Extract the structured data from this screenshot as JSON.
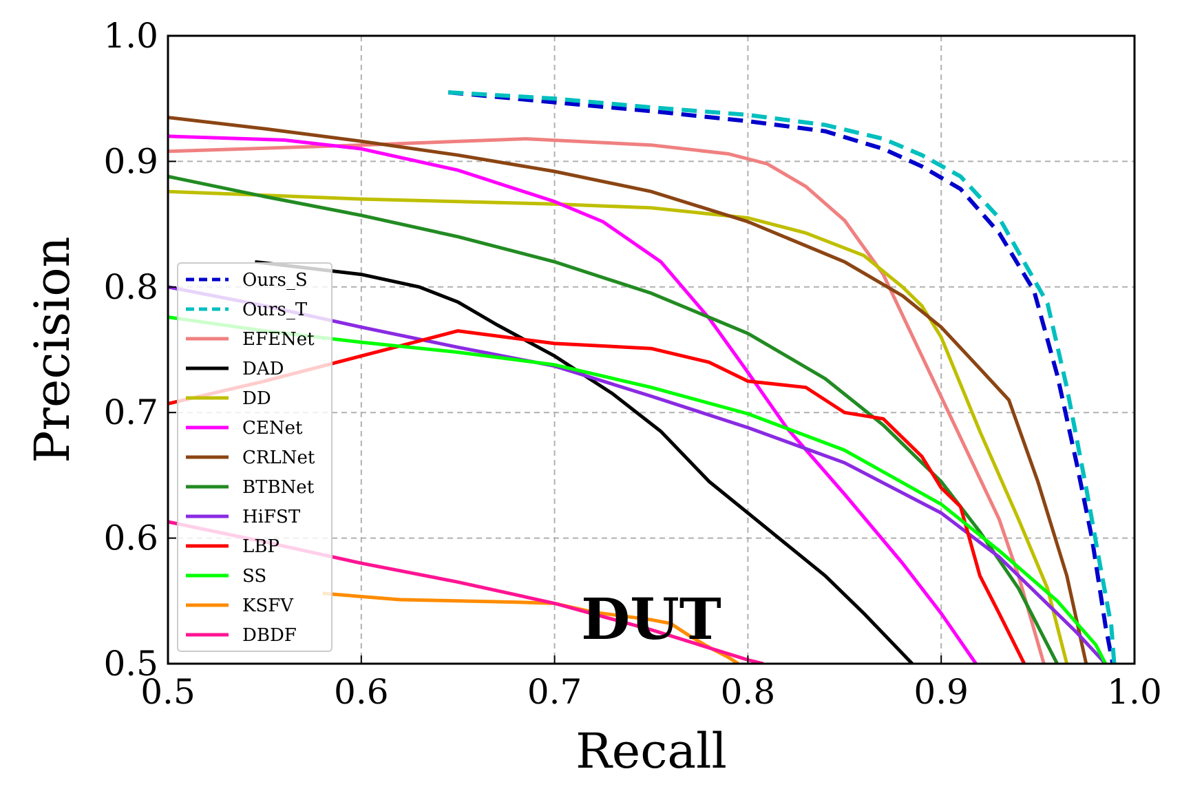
{
  "chart_data": {
    "type": "line",
    "xlabel": "Recall",
    "ylabel": "Precision",
    "xlim": [
      0.5,
      1.0
    ],
    "ylim": [
      0.5,
      1.0
    ],
    "x_ticks": [
      "0.5",
      "0.6",
      "0.7",
      "0.8",
      "0.9",
      "1.0"
    ],
    "y_ticks": [
      "0.5",
      "0.6",
      "0.7",
      "0.8",
      "0.9",
      "1.0"
    ],
    "grid": true,
    "legend_position": "left",
    "annotation": "DUT",
    "series": [
      {
        "name": "Ours_S",
        "color": "#0000cc",
        "dashed": true,
        "points": [
          [
            0.645,
            0.955
          ],
          [
            0.7,
            0.947
          ],
          [
            0.75,
            0.94
          ],
          [
            0.8,
            0.932
          ],
          [
            0.84,
            0.924
          ],
          [
            0.87,
            0.91
          ],
          [
            0.89,
            0.896
          ],
          [
            0.91,
            0.878
          ],
          [
            0.93,
            0.843
          ],
          [
            0.948,
            0.797
          ],
          [
            0.96,
            0.73
          ],
          [
            0.97,
            0.66
          ],
          [
            0.978,
            0.6
          ],
          [
            0.985,
            0.53
          ],
          [
            0.99,
            0.49
          ]
        ]
      },
      {
        "name": "Ours_T",
        "color": "#00bfbf",
        "dashed": true,
        "points": [
          [
            0.645,
            0.955
          ],
          [
            0.7,
            0.95
          ],
          [
            0.75,
            0.943
          ],
          [
            0.8,
            0.937
          ],
          [
            0.84,
            0.929
          ],
          [
            0.87,
            0.918
          ],
          [
            0.89,
            0.905
          ],
          [
            0.91,
            0.888
          ],
          [
            0.93,
            0.855
          ],
          [
            0.955,
            0.787
          ],
          [
            0.965,
            0.72
          ],
          [
            0.975,
            0.64
          ],
          [
            0.982,
            0.58
          ],
          [
            0.988,
            0.53
          ],
          [
            0.99,
            0.49
          ]
        ]
      },
      {
        "name": "EFENet",
        "color": "#f08080",
        "dashed": false,
        "points": [
          [
            0.5,
            0.908
          ],
          [
            0.6,
            0.913
          ],
          [
            0.685,
            0.918
          ],
          [
            0.75,
            0.913
          ],
          [
            0.79,
            0.906
          ],
          [
            0.81,
            0.898
          ],
          [
            0.83,
            0.88
          ],
          [
            0.85,
            0.853
          ],
          [
            0.87,
            0.81
          ],
          [
            0.89,
            0.745
          ],
          [
            0.91,
            0.68
          ],
          [
            0.93,
            0.615
          ],
          [
            0.94,
            0.57
          ],
          [
            0.955,
            0.49
          ]
        ]
      },
      {
        "name": "DAD",
        "color": "#000000",
        "dashed": false,
        "points": [
          [
            0.545,
            0.82
          ],
          [
            0.6,
            0.81
          ],
          [
            0.63,
            0.8
          ],
          [
            0.65,
            0.788
          ],
          [
            0.67,
            0.77
          ],
          [
            0.7,
            0.745
          ],
          [
            0.73,
            0.715
          ],
          [
            0.755,
            0.685
          ],
          [
            0.78,
            0.645
          ],
          [
            0.8,
            0.62
          ],
          [
            0.84,
            0.57
          ],
          [
            0.86,
            0.54
          ],
          [
            0.885,
            0.5
          ]
        ]
      },
      {
        "name": "DD",
        "color": "#bfbf00",
        "dashed": false,
        "points": [
          [
            0.5,
            0.876
          ],
          [
            0.6,
            0.87
          ],
          [
            0.7,
            0.866
          ],
          [
            0.75,
            0.863
          ],
          [
            0.8,
            0.855
          ],
          [
            0.83,
            0.843
          ],
          [
            0.86,
            0.825
          ],
          [
            0.88,
            0.8
          ],
          [
            0.89,
            0.785
          ],
          [
            0.9,
            0.76
          ],
          [
            0.92,
            0.685
          ],
          [
            0.94,
            0.615
          ],
          [
            0.955,
            0.56
          ],
          [
            0.965,
            0.5
          ]
        ]
      },
      {
        "name": "CENet",
        "color": "#ff00ff",
        "dashed": false,
        "points": [
          [
            0.5,
            0.92
          ],
          [
            0.56,
            0.917
          ],
          [
            0.6,
            0.91
          ],
          [
            0.65,
            0.893
          ],
          [
            0.7,
            0.868
          ],
          [
            0.725,
            0.852
          ],
          [
            0.755,
            0.82
          ],
          [
            0.78,
            0.775
          ],
          [
            0.8,
            0.732
          ],
          [
            0.82,
            0.688
          ],
          [
            0.85,
            0.635
          ],
          [
            0.88,
            0.58
          ],
          [
            0.9,
            0.54
          ],
          [
            0.918,
            0.5
          ]
        ]
      },
      {
        "name": "CRLNet",
        "color": "#8b4513",
        "dashed": false,
        "points": [
          [
            0.5,
            0.935
          ],
          [
            0.55,
            0.926
          ],
          [
            0.6,
            0.916
          ],
          [
            0.65,
            0.905
          ],
          [
            0.7,
            0.892
          ],
          [
            0.75,
            0.876
          ],
          [
            0.8,
            0.852
          ],
          [
            0.85,
            0.82
          ],
          [
            0.88,
            0.793
          ],
          [
            0.9,
            0.768
          ],
          [
            0.92,
            0.735
          ],
          [
            0.935,
            0.71
          ],
          [
            0.95,
            0.645
          ],
          [
            0.965,
            0.57
          ],
          [
            0.975,
            0.5
          ]
        ]
      },
      {
        "name": "BTBNet",
        "color": "#228b22",
        "dashed": false,
        "points": [
          [
            0.5,
            0.888
          ],
          [
            0.55,
            0.872
          ],
          [
            0.6,
            0.857
          ],
          [
            0.65,
            0.84
          ],
          [
            0.7,
            0.82
          ],
          [
            0.75,
            0.795
          ],
          [
            0.8,
            0.763
          ],
          [
            0.84,
            0.727
          ],
          [
            0.87,
            0.69
          ],
          [
            0.9,
            0.645
          ],
          [
            0.92,
            0.605
          ],
          [
            0.94,
            0.56
          ],
          [
            0.96,
            0.5
          ]
        ]
      },
      {
        "name": "HiFST",
        "color": "#8a2be2",
        "dashed": false,
        "points": [
          [
            0.5,
            0.8
          ],
          [
            0.55,
            0.785
          ],
          [
            0.6,
            0.768
          ],
          [
            0.65,
            0.752
          ],
          [
            0.7,
            0.737
          ],
          [
            0.75,
            0.713
          ],
          [
            0.8,
            0.688
          ],
          [
            0.85,
            0.66
          ],
          [
            0.9,
            0.62
          ],
          [
            0.93,
            0.585
          ],
          [
            0.95,
            0.555
          ],
          [
            0.97,
            0.525
          ],
          [
            0.985,
            0.5
          ]
        ]
      },
      {
        "name": "LBP",
        "color": "#ff0000",
        "dashed": false,
        "points": [
          [
            0.5,
            0.707
          ],
          [
            0.55,
            0.725
          ],
          [
            0.6,
            0.745
          ],
          [
            0.65,
            0.765
          ],
          [
            0.7,
            0.755
          ],
          [
            0.75,
            0.751
          ],
          [
            0.78,
            0.74
          ],
          [
            0.8,
            0.725
          ],
          [
            0.83,
            0.72
          ],
          [
            0.85,
            0.7
          ],
          [
            0.87,
            0.695
          ],
          [
            0.89,
            0.665
          ],
          [
            0.9,
            0.64
          ],
          [
            0.91,
            0.625
          ],
          [
            0.92,
            0.57
          ],
          [
            0.93,
            0.54
          ],
          [
            0.943,
            0.5
          ]
        ]
      },
      {
        "name": "SS",
        "color": "#00ff00",
        "dashed": false,
        "points": [
          [
            0.5,
            0.776
          ],
          [
            0.55,
            0.765
          ],
          [
            0.6,
            0.756
          ],
          [
            0.65,
            0.748
          ],
          [
            0.7,
            0.738
          ],
          [
            0.75,
            0.72
          ],
          [
            0.8,
            0.699
          ],
          [
            0.85,
            0.67
          ],
          [
            0.9,
            0.627
          ],
          [
            0.93,
            0.59
          ],
          [
            0.96,
            0.55
          ],
          [
            0.98,
            0.515
          ],
          [
            0.985,
            0.5
          ]
        ]
      },
      {
        "name": "KSFV",
        "color": "#ff8c00",
        "dashed": false,
        "points": [
          [
            0.58,
            0.556
          ],
          [
            0.62,
            0.551
          ],
          [
            0.68,
            0.549
          ],
          [
            0.7,
            0.548
          ],
          [
            0.72,
            0.541
          ],
          [
            0.75,
            0.535
          ],
          [
            0.76,
            0.532
          ],
          [
            0.77,
            0.522
          ],
          [
            0.78,
            0.513
          ],
          [
            0.79,
            0.505
          ],
          [
            0.795,
            0.5
          ]
        ]
      },
      {
        "name": "DBDF",
        "color": "#ff1493",
        "dashed": false,
        "points": [
          [
            0.5,
            0.613
          ],
          [
            0.55,
            0.597
          ],
          [
            0.6,
            0.58
          ],
          [
            0.65,
            0.565
          ],
          [
            0.7,
            0.548
          ],
          [
            0.75,
            0.527
          ],
          [
            0.8,
            0.503
          ],
          [
            0.808,
            0.5
          ]
        ]
      }
    ]
  }
}
